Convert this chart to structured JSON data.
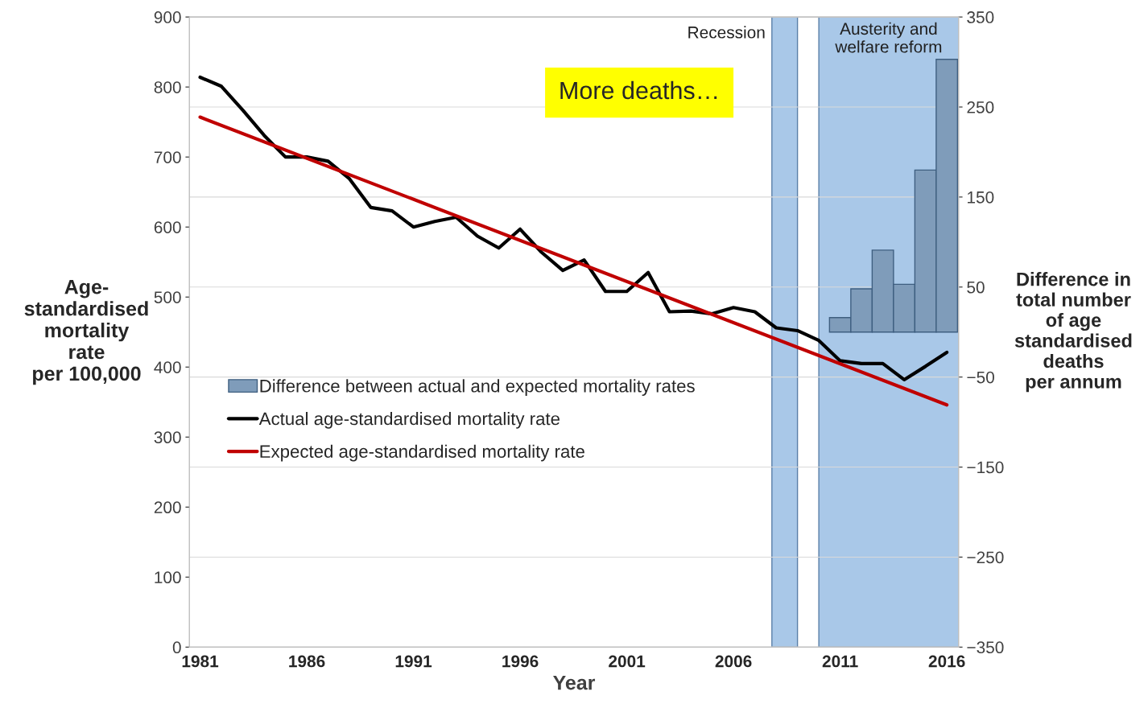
{
  "chart_data": {
    "type": "line",
    "xlabel": "Year",
    "ylabel": "Age-\nstandardised\nmortality\nrate\nper 100,000",
    "y2label": "Difference in\ntotal number\nof age\nstandardised\ndeaths\nper annum",
    "xlim": [
      1980.5,
      2016.55
    ],
    "xticks": [
      1981,
      1986,
      1991,
      1996,
      2001,
      2006,
      2011,
      2016
    ],
    "ylim": [
      0,
      900
    ],
    "yticks": [
      0,
      100,
      200,
      300,
      400,
      500,
      600,
      700,
      800,
      900
    ],
    "y2lim": [
      -350,
      350
    ],
    "y2ticks": [
      -350,
      -250,
      -150,
      -50,
      50,
      150,
      250,
      350
    ],
    "grid": "y2",
    "legend": "left",
    "series": [
      {
        "name": "Difference between actual and expected mortality rates",
        "type": "bar",
        "axis": "y2",
        "color": "#7f9cba",
        "x": [
          2011,
          2012,
          2013,
          2014,
          2015,
          2016
        ],
        "values": [
          16,
          48,
          91,
          53,
          180,
          303
        ]
      },
      {
        "name": "Actual age-standardised mortality rate",
        "color": "#000000",
        "x": [
          1981,
          1982,
          1983,
          1984,
          1985,
          1986,
          1987,
          1988,
          1989,
          1990,
          1991,
          1992,
          1993,
          1994,
          1995,
          1996,
          1997,
          1998,
          1999,
          2000,
          2001,
          2002,
          2003,
          2004,
          2005,
          2006,
          2007,
          2008,
          2009,
          2010,
          2011,
          2012,
          2013,
          2014,
          2015,
          2016
        ],
        "values": [
          814,
          801,
          767,
          731,
          700,
          700,
          694,
          669,
          628,
          623,
          600,
          608,
          614,
          587,
          570,
          597,
          564,
          538,
          553,
          508,
          508,
          535,
          479,
          480,
          476,
          485,
          479,
          456,
          452,
          438,
          409,
          405,
          405,
          382,
          401,
          421
        ]
      },
      {
        "name": "Expected age-standardised mortality rate",
        "color": "#c00000",
        "x": [
          1981,
          2016
        ],
        "values": [
          757,
          346
        ]
      }
    ],
    "bands": [
      {
        "axis": "x",
        "from": 2007.8,
        "to": 2009.0,
        "label": "Recession",
        "color": "#a9c8e8"
      },
      {
        "axis": "x",
        "from": 2010.0,
        "to": 2016.55,
        "label": "Austerity and\nwelfare reform",
        "color": "#a9c8e8"
      }
    ],
    "annotations": [
      "More deaths…"
    ]
  }
}
